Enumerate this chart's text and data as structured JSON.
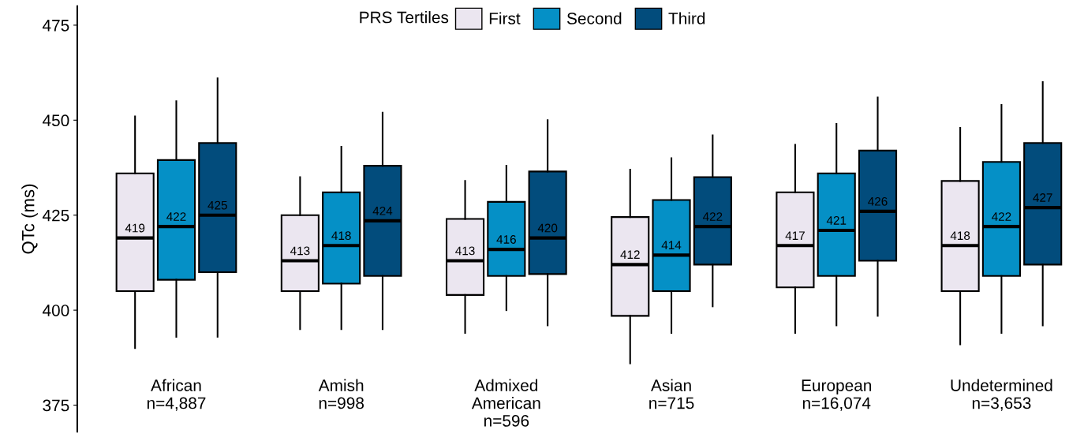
{
  "chart_data": {
    "type": "box",
    "ylabel": "QTc (ms)",
    "legend_title": "PRS Tertiles",
    "legend": "top",
    "grid": false,
    "categories": [
      "African\nn=4,887",
      "Amish\nn=998",
      "Admixed\nAmerican\nn=596",
      "Asian\nn=715",
      "European\nn=16,074",
      "Undetermined\nn=3,653"
    ],
    "ylim": [
      368,
      480
    ],
    "yticks": [
      375,
      400,
      425,
      450,
      475
    ],
    "series": [
      {
        "name": "First",
        "color": "#ebe6f0",
        "value_labels": [
          "419",
          "413",
          "413",
          "412",
          "417",
          "418"
        ],
        "boxes": [
          {
            "low": 390,
            "q1": 405,
            "median": 419,
            "q3": 436,
            "high": 451
          },
          {
            "low": 395,
            "q1": 405,
            "median": 413,
            "q3": 425,
            "high": 435
          },
          {
            "low": 394,
            "q1": 404,
            "median": 413,
            "q3": 424,
            "high": 434
          },
          {
            "low": 386,
            "q1": 398.5,
            "median": 412,
            "q3": 424.5,
            "high": 437
          },
          {
            "low": 394,
            "q1": 406,
            "median": 417,
            "q3": 431,
            "high": 443.5
          },
          {
            "low": 391,
            "q1": 405,
            "median": 417,
            "q3": 434,
            "high": 448
          }
        ]
      },
      {
        "name": "Second",
        "color": "#0590c6",
        "value_labels": [
          "422",
          "418",
          "416",
          "414",
          "421",
          "422"
        ],
        "boxes": [
          {
            "low": 393,
            "q1": 408,
            "median": 422,
            "q3": 439.5,
            "high": 455
          },
          {
            "low": 395,
            "q1": 407,
            "median": 417,
            "q3": 431,
            "high": 443
          },
          {
            "low": 400,
            "q1": 409,
            "median": 416,
            "q3": 428.5,
            "high": 438
          },
          {
            "low": 394,
            "q1": 405,
            "median": 414.5,
            "q3": 429,
            "high": 440
          },
          {
            "low": 396,
            "q1": 409,
            "median": 421,
            "q3": 436,
            "high": 449
          },
          {
            "low": 394,
            "q1": 409,
            "median": 422,
            "q3": 439,
            "high": 454
          }
        ]
      },
      {
        "name": "Third",
        "color": "#024c7c",
        "value_labels": [
          "425",
          "424",
          "420",
          "422",
          "426",
          "427"
        ],
        "boxes": [
          {
            "low": 393,
            "q1": 410,
            "median": 425,
            "q3": 444,
            "high": 461
          },
          {
            "low": 395,
            "q1": 409,
            "median": 423.5,
            "q3": 438,
            "high": 452
          },
          {
            "low": 396,
            "q1": 409.5,
            "median": 419,
            "q3": 436.5,
            "high": 450
          },
          {
            "low": 401,
            "q1": 412,
            "median": 422,
            "q3": 435,
            "high": 446
          },
          {
            "low": 398.5,
            "q1": 413,
            "median": 426,
            "q3": 442,
            "high": 456
          },
          {
            "low": 396,
            "q1": 412,
            "median": 427,
            "q3": 444,
            "high": 460
          }
        ]
      }
    ]
  }
}
